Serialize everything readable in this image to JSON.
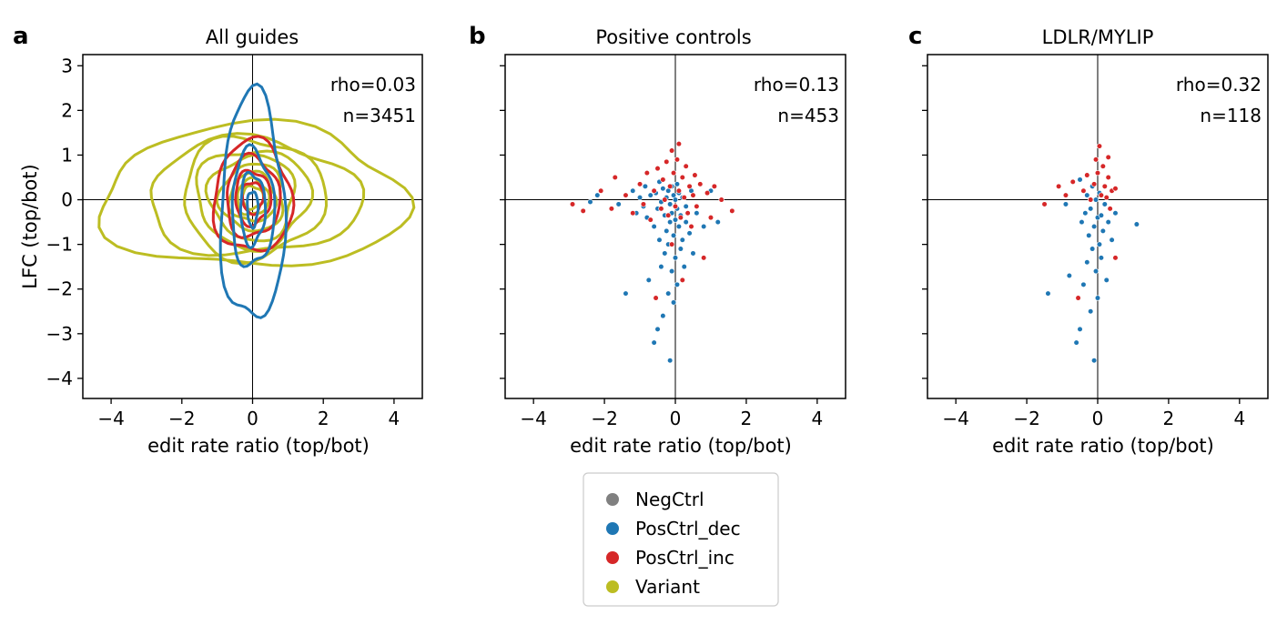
{
  "colors": {
    "NegCtrl": "#808080",
    "PosCtrl_dec": "#1f77b4",
    "PosCtrl_inc": "#d62728",
    "Variant": "#bcbd22"
  },
  "legend": {
    "entries": [
      "NegCtrl",
      "PosCtrl_dec",
      "PosCtrl_inc",
      "Variant"
    ]
  },
  "chart_data": [
    {
      "type": "contour",
      "panel_letter": "a",
      "title": "All guides",
      "xlabel": "edit rate ratio (top/bot)",
      "ylabel": "LFC (top/bot)",
      "xlim": [
        -4.8,
        4.8
      ],
      "ylim": [
        -4.45,
        3.25
      ],
      "xticks": [
        -4,
        -2,
        0,
        2,
        4
      ],
      "yticks": [
        3,
        2,
        1,
        0,
        -1,
        -2,
        -3,
        -4
      ],
      "annotations": [
        "rho=0.03",
        "n=3451"
      ],
      "series": [
        {
          "name": "Variant",
          "center": [
            0,
            0.05
          ],
          "spread_x": [
            4.3,
            3.0,
            2.0,
            1.6,
            1.2,
            0.9,
            0.65,
            0.45,
            0.3
          ],
          "spread_y": [
            1.6,
            1.3,
            1.35,
            1.1,
            0.95,
            0.75,
            0.55,
            0.4,
            0.25
          ]
        },
        {
          "name": "PosCtrl_inc",
          "center": [
            0,
            0.05
          ],
          "spread_x": [
            1.1,
            0.75,
            0.5,
            0.3
          ],
          "spread_y": [
            1.25,
            0.9,
            0.6,
            0.35
          ]
        },
        {
          "name": "PosCtrl_dec",
          "center": [
            0,
            -0.2
          ],
          "spread_x": [
            0.9,
            0.6,
            0.35,
            0.15
          ],
          "spread_y": [
            2.55,
            1.3,
            0.8,
            0.4
          ]
        }
      ]
    },
    {
      "type": "scatter",
      "panel_letter": "b",
      "title": "Positive controls",
      "xlabel": "edit rate ratio (top/bot)",
      "ylabel": "",
      "xlim": [
        -4.8,
        4.8
      ],
      "ylim": [
        -4.45,
        3.25
      ],
      "xticks": [
        -4,
        -2,
        0,
        2,
        4
      ],
      "yticks": [
        3,
        2,
        1,
        0,
        -1,
        -2,
        -3,
        -4
      ],
      "annotations": [
        "rho=0.13",
        "n=453"
      ],
      "series": [
        {
          "name": "PosCtrl_dec",
          "points": [
            [
              -2.4,
              -0.05
            ],
            [
              -2.2,
              0.1
            ],
            [
              -1.6,
              -0.1
            ],
            [
              -1.4,
              -2.1
            ],
            [
              -1.2,
              0.2
            ],
            [
              -1.1,
              -0.3
            ],
            [
              -1.0,
              0.05
            ],
            [
              -0.9,
              -0.15
            ],
            [
              -0.85,
              0.3
            ],
            [
              -0.8,
              -0.4
            ],
            [
              -0.75,
              -1.8
            ],
            [
              -0.7,
              0.1
            ],
            [
              -0.6,
              -0.6
            ],
            [
              -0.6,
              -3.2
            ],
            [
              -0.55,
              0.15
            ],
            [
              -0.5,
              -0.2
            ],
            [
              -0.5,
              -2.9
            ],
            [
              -0.45,
              0.4
            ],
            [
              -0.45,
              -0.9
            ],
            [
              -0.4,
              -1.5
            ],
            [
              -0.4,
              -0.05
            ],
            [
              -0.35,
              -2.6
            ],
            [
              -0.35,
              0.25
            ],
            [
              -0.3,
              -0.35
            ],
            [
              -0.3,
              -1.2
            ],
            [
              -0.25,
              0.05
            ],
            [
              -0.25,
              -0.7
            ],
            [
              -0.2,
              0.2
            ],
            [
              -0.2,
              -1.0
            ],
            [
              -0.2,
              -2.1
            ],
            [
              -0.15,
              -0.1
            ],
            [
              -0.15,
              -0.5
            ],
            [
              -0.15,
              -3.6
            ],
            [
              -0.1,
              0.3
            ],
            [
              -0.1,
              -0.3
            ],
            [
              -0.1,
              -1.6
            ],
            [
              -0.05,
              0.1
            ],
            [
              -0.05,
              -0.8
            ],
            [
              -0.05,
              -2.3
            ],
            [
              0.0,
              0.0
            ],
            [
              0.0,
              -0.45
            ],
            [
              0.0,
              -1.3
            ],
            [
              0.05,
              0.35
            ],
            [
              0.05,
              -0.2
            ],
            [
              0.05,
              -1.9
            ],
            [
              0.1,
              -0.6
            ],
            [
              0.1,
              0.15
            ],
            [
              0.15,
              -1.1
            ],
            [
              0.15,
              -0.35
            ],
            [
              0.2,
              0.05
            ],
            [
              0.2,
              -0.9
            ],
            [
              0.25,
              -1.5
            ],
            [
              0.3,
              -0.15
            ],
            [
              0.3,
              -0.5
            ],
            [
              0.4,
              -0.75
            ],
            [
              0.45,
              0.2
            ],
            [
              0.5,
              -1.2
            ],
            [
              0.6,
              -0.3
            ],
            [
              0.8,
              -0.6
            ],
            [
              1.0,
              0.2
            ],
            [
              1.2,
              -0.5
            ]
          ]
        },
        {
          "name": "PosCtrl_inc",
          "points": [
            [
              -2.9,
              -0.1
            ],
            [
              -2.6,
              -0.25
            ],
            [
              -2.1,
              0.2
            ],
            [
              -1.8,
              -0.2
            ],
            [
              -1.7,
              0.5
            ],
            [
              -1.4,
              0.1
            ],
            [
              -1.2,
              -0.3
            ],
            [
              -1.0,
              0.35
            ],
            [
              -0.9,
              -0.1
            ],
            [
              -0.8,
              0.6
            ],
            [
              -0.7,
              -0.45
            ],
            [
              -0.6,
              0.2
            ],
            [
              -0.55,
              -2.2
            ],
            [
              -0.5,
              0.7
            ],
            [
              -0.4,
              -0.2
            ],
            [
              -0.35,
              0.45
            ],
            [
              -0.3,
              0.0
            ],
            [
              -0.25,
              0.85
            ],
            [
              -0.2,
              -0.35
            ],
            [
              -0.15,
              0.3
            ],
            [
              -0.1,
              1.1
            ],
            [
              -0.05,
              0.6
            ],
            [
              0.0,
              -0.15
            ],
            [
              0.05,
              0.9
            ],
            [
              0.1,
              0.2
            ],
            [
              0.1,
              1.25
            ],
            [
              0.15,
              -0.4
            ],
            [
              0.2,
              0.5
            ],
            [
              0.25,
              0.05
            ],
            [
              0.3,
              0.75
            ],
            [
              0.35,
              -0.3
            ],
            [
              0.4,
              0.3
            ],
            [
              0.45,
              -0.6
            ],
            [
              0.5,
              0.1
            ],
            [
              0.55,
              0.55
            ],
            [
              0.6,
              -0.15
            ],
            [
              0.7,
              0.35
            ],
            [
              0.8,
              -1.3
            ],
            [
              0.9,
              0.15
            ],
            [
              1.0,
              -0.4
            ],
            [
              1.1,
              0.3
            ],
            [
              1.3,
              0.0
            ],
            [
              1.6,
              -0.25
            ],
            [
              0.2,
              -1.8
            ],
            [
              -0.1,
              -1.0
            ]
          ]
        }
      ]
    },
    {
      "type": "scatter",
      "panel_letter": "c",
      "title": "LDLR/MYLIP",
      "xlabel": "edit rate ratio (top/bot)",
      "ylabel": "",
      "xlim": [
        -4.8,
        4.8
      ],
      "ylim": [
        -4.45,
        3.25
      ],
      "xticks": [
        -4,
        -2,
        0,
        2,
        4
      ],
      "yticks": [
        3,
        2,
        1,
        0,
        -1,
        -2,
        -3,
        -4
      ],
      "annotations": [
        "rho=0.32",
        "n=118"
      ],
      "series": [
        {
          "name": "PosCtrl_dec",
          "points": [
            [
              -1.4,
              -2.1
            ],
            [
              -0.9,
              -0.1
            ],
            [
              -0.8,
              -1.7
            ],
            [
              -0.6,
              -3.2
            ],
            [
              -0.5,
              -2.9
            ],
            [
              -0.5,
              0.45
            ],
            [
              -0.45,
              -0.5
            ],
            [
              -0.4,
              -1.9
            ],
            [
              -0.35,
              -0.3
            ],
            [
              -0.3,
              -1.4
            ],
            [
              -0.3,
              0.1
            ],
            [
              -0.25,
              -0.8
            ],
            [
              -0.2,
              -2.5
            ],
            [
              -0.2,
              -0.2
            ],
            [
              -0.15,
              -1.1
            ],
            [
              -0.15,
              0.3
            ],
            [
              -0.1,
              -0.6
            ],
            [
              -0.1,
              -3.6
            ],
            [
              -0.05,
              -1.6
            ],
            [
              -0.05,
              0.0
            ],
            [
              0.0,
              -0.4
            ],
            [
              0.0,
              -2.2
            ],
            [
              0.05,
              -1.0
            ],
            [
              0.05,
              0.15
            ],
            [
              0.1,
              -0.35
            ],
            [
              0.1,
              -1.3
            ],
            [
              0.15,
              -0.7
            ],
            [
              0.2,
              -0.1
            ],
            [
              0.25,
              -1.8
            ],
            [
              0.3,
              -0.5
            ],
            [
              0.4,
              -0.9
            ],
            [
              0.5,
              -0.3
            ],
            [
              1.1,
              -0.55
            ]
          ]
        },
        {
          "name": "PosCtrl_inc",
          "points": [
            [
              -1.5,
              -0.1
            ],
            [
              -1.1,
              0.3
            ],
            [
              -0.9,
              0.1
            ],
            [
              -0.7,
              0.4
            ],
            [
              -0.55,
              -2.2
            ],
            [
              -0.4,
              0.2
            ],
            [
              -0.3,
              0.55
            ],
            [
              -0.2,
              0.0
            ],
            [
              -0.1,
              0.35
            ],
            [
              -0.05,
              0.9
            ],
            [
              0.0,
              0.6
            ],
            [
              0.05,
              1.2
            ],
            [
              0.1,
              0.1
            ],
            [
              0.15,
              0.75
            ],
            [
              0.2,
              0.3
            ],
            [
              0.25,
              0.05
            ],
            [
              0.3,
              0.5
            ],
            [
              0.35,
              -0.2
            ],
            [
              0.4,
              0.2
            ],
            [
              0.5,
              -1.3
            ],
            [
              0.5,
              0.25
            ],
            [
              0.3,
              0.95
            ]
          ]
        }
      ]
    }
  ]
}
